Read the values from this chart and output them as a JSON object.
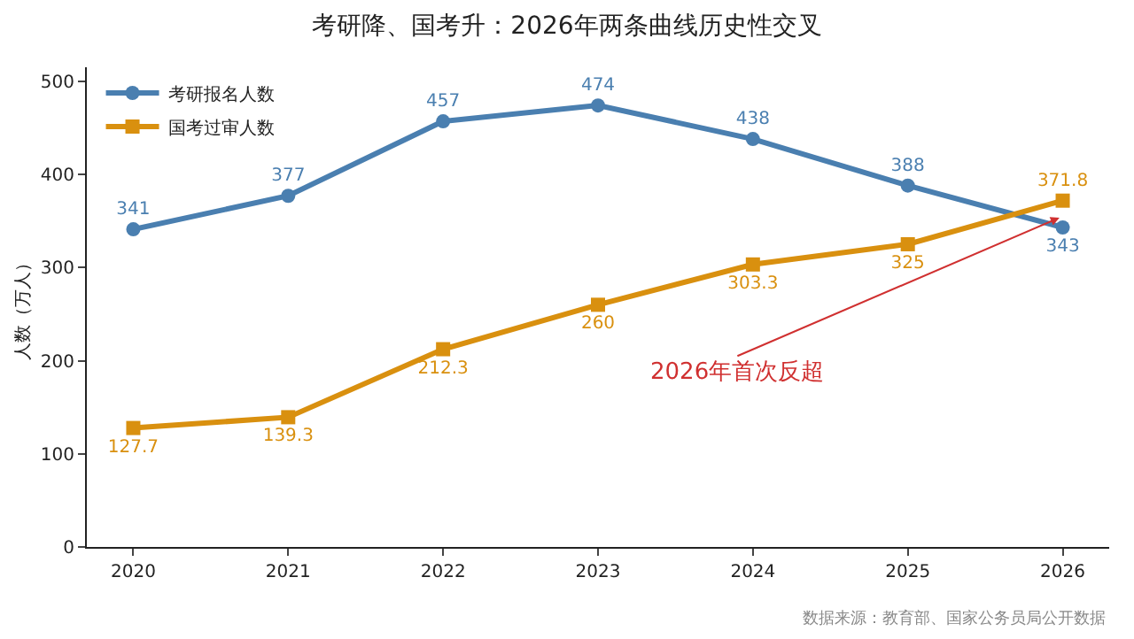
{
  "chart_data": {
    "type": "line",
    "title": "考研降、国考升：2026年两条曲线历史性交叉",
    "ylabel": "人数（万人）",
    "categories": [
      "2020",
      "2021",
      "2022",
      "2023",
      "2024",
      "2025",
      "2026"
    ],
    "series": [
      {
        "name": "考研报名人数",
        "color": "#4a7fb0",
        "marker": "circle",
        "values": [
          341,
          377,
          457,
          474,
          438,
          388,
          343
        ]
      },
      {
        "name": "国考过审人数",
        "color": "#d9900f",
        "marker": "square",
        "values": [
          127.7,
          139.3,
          212.3,
          260,
          303.3,
          325,
          371.8
        ]
      }
    ],
    "ylim": [
      0,
      515
    ],
    "yticks": [
      0,
      100,
      200,
      300,
      400,
      500
    ],
    "grid": false,
    "legend": "top left",
    "data_labels": true,
    "line_style": "solid",
    "annotations": [
      {
        "text": "2026年首次反超",
        "x": "2026",
        "y": 355
      },
      "数据来源：教育部、国家公务员局公开数据"
    ]
  }
}
